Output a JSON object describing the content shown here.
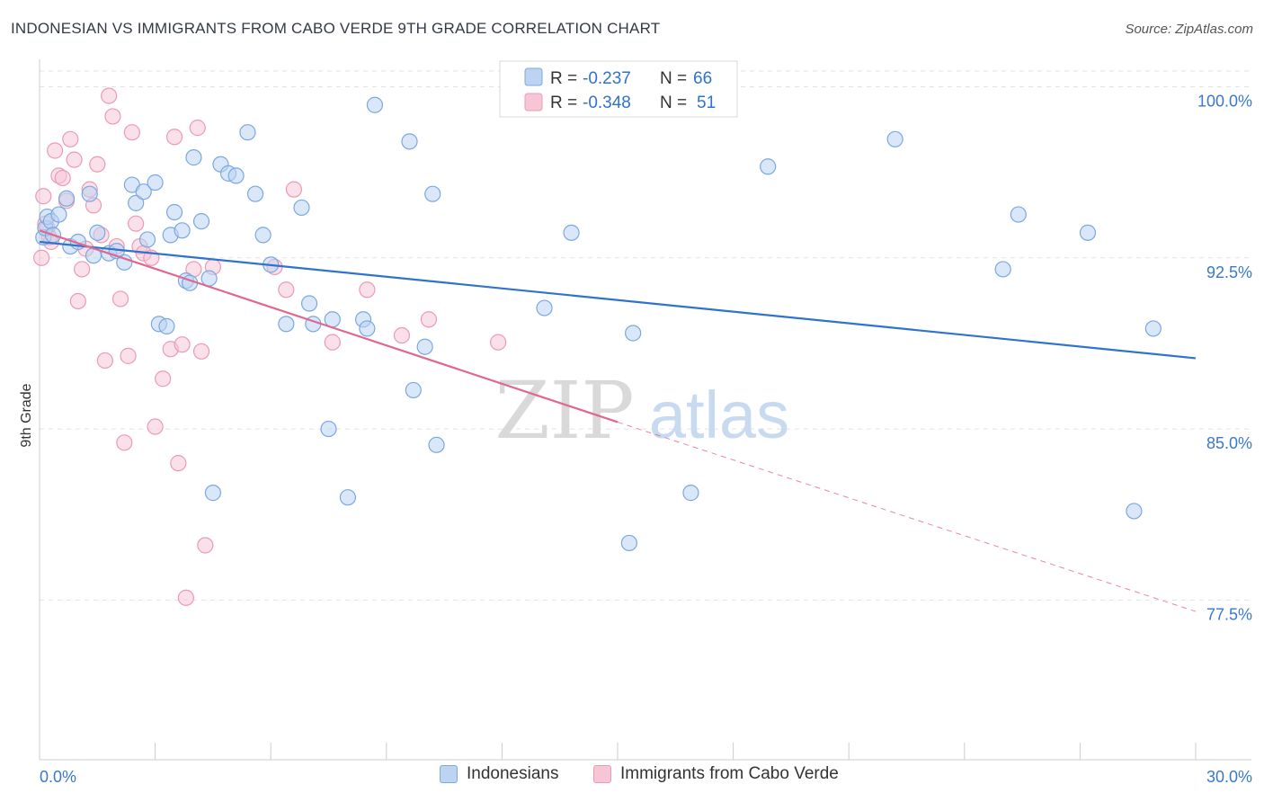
{
  "title": "INDONESIAN VS IMMIGRANTS FROM CABO VERDE 9TH GRADE CORRELATION CHART",
  "source": "Source: ZipAtlas.com",
  "watermark": {
    "zip": "ZIP",
    "atlas": "atlas"
  },
  "chart_data": {
    "type": "scatter",
    "ylabel": "9th Grade",
    "xlabel": "",
    "xlim": [
      0,
      30
    ],
    "ylim": [
      70.5,
      101.2
    ],
    "x_tick_labels": [
      "0.0%",
      "30.0%"
    ],
    "y_ticks": [
      77.5,
      85.0,
      92.5,
      100.0
    ],
    "y_tick_labels": [
      "77.5%",
      "85.0%",
      "92.5%",
      "100.0%"
    ],
    "grid": "horizontal-dashed",
    "legend_box": [
      {
        "r_label": "R =",
        "r_value": "-0.237",
        "n_label": "N =",
        "n_value": "66"
      },
      {
        "r_label": "R =",
        "r_value": "-0.348",
        "n_label": "N =",
        "n_value": "51"
      }
    ],
    "series": [
      {
        "name": "Indonesians",
        "color": "#7aa8e0",
        "fill": "#bcd3f2",
        "line_color": "#2f73cc",
        "trend": {
          "x0": 0,
          "y0": 93.2,
          "x1": 30,
          "y1": 88.1
        },
        "points": [
          [
            0.1,
            93.4
          ],
          [
            0.15,
            93.8
          ],
          [
            0.2,
            94.3
          ],
          [
            0.3,
            94.1
          ],
          [
            0.35,
            93.5
          ],
          [
            0.5,
            94.4
          ],
          [
            0.7,
            95.1
          ],
          [
            0.8,
            93.0
          ],
          [
            1.0,
            93.2
          ],
          [
            1.3,
            95.3
          ],
          [
            1.4,
            92.6
          ],
          [
            1.5,
            93.6
          ],
          [
            1.8,
            92.7
          ],
          [
            2.0,
            92.8
          ],
          [
            2.2,
            92.3
          ],
          [
            2.4,
            95.7
          ],
          [
            2.5,
            94.9
          ],
          [
            2.7,
            95.4
          ],
          [
            2.8,
            93.3
          ],
          [
            3.0,
            95.8
          ],
          [
            3.1,
            89.6
          ],
          [
            3.3,
            89.5
          ],
          [
            3.4,
            93.5
          ],
          [
            3.5,
            94.5
          ],
          [
            3.7,
            93.7
          ],
          [
            3.8,
            91.5
          ],
          [
            3.9,
            91.4
          ],
          [
            4.0,
            96.9
          ],
          [
            4.2,
            94.1
          ],
          [
            4.4,
            91.6
          ],
          [
            4.5,
            82.2
          ],
          [
            4.7,
            96.6
          ],
          [
            4.9,
            96.2
          ],
          [
            5.1,
            96.1
          ],
          [
            5.4,
            98.0
          ],
          [
            5.6,
            95.3
          ],
          [
            5.8,
            93.5
          ],
          [
            6.0,
            92.2
          ],
          [
            6.4,
            89.6
          ],
          [
            6.8,
            94.7
          ],
          [
            7.0,
            90.5
          ],
          [
            7.1,
            89.6
          ],
          [
            7.5,
            85.0
          ],
          [
            7.6,
            89.8
          ],
          [
            8.0,
            82.0
          ],
          [
            8.4,
            89.8
          ],
          [
            8.5,
            89.4
          ],
          [
            8.7,
            99.2
          ],
          [
            9.6,
            97.6
          ],
          [
            9.7,
            86.7
          ],
          [
            10.0,
            88.6
          ],
          [
            10.2,
            95.3
          ],
          [
            10.3,
            84.3
          ],
          [
            13.1,
            90.3
          ],
          [
            13.2,
            99.2
          ],
          [
            13.8,
            93.6
          ],
          [
            15.3,
            80.0
          ],
          [
            15.4,
            89.2
          ],
          [
            16.9,
            82.2
          ],
          [
            18.9,
            96.5
          ],
          [
            22.2,
            97.7
          ],
          [
            25.0,
            92.0
          ],
          [
            25.4,
            94.4
          ],
          [
            27.2,
            93.6
          ],
          [
            28.4,
            81.4
          ],
          [
            28.9,
            89.4
          ]
        ]
      },
      {
        "name": "Immigrants from Cabo Verde",
        "color": "#ec9ab4",
        "fill": "#f6c6d5",
        "line_color": "#e0688e",
        "trend": {
          "x0": 0,
          "y0": 93.7,
          "x1": 15,
          "y1": 85.3
        },
        "trend_dashed_end": {
          "x": 30,
          "y": 77.0
        },
        "points": [
          [
            0.05,
            92.5
          ],
          [
            0.1,
            95.2
          ],
          [
            0.15,
            94.0
          ],
          [
            0.2,
            93.8
          ],
          [
            0.25,
            93.4
          ],
          [
            0.3,
            93.2
          ],
          [
            0.4,
            97.2
          ],
          [
            0.5,
            96.1
          ],
          [
            0.6,
            96.0
          ],
          [
            0.7,
            95.0
          ],
          [
            0.8,
            97.7
          ],
          [
            0.9,
            96.8
          ],
          [
            1.0,
            90.6
          ],
          [
            1.1,
            92.0
          ],
          [
            1.2,
            92.9
          ],
          [
            1.3,
            95.5
          ],
          [
            1.4,
            94.8
          ],
          [
            1.5,
            96.6
          ],
          [
            1.6,
            93.5
          ],
          [
            1.7,
            88.0
          ],
          [
            1.8,
            99.6
          ],
          [
            1.9,
            98.7
          ],
          [
            2.0,
            93.0
          ],
          [
            2.1,
            90.7
          ],
          [
            2.2,
            84.4
          ],
          [
            2.3,
            88.2
          ],
          [
            2.4,
            98.0
          ],
          [
            2.5,
            94.0
          ],
          [
            2.6,
            93.0
          ],
          [
            2.7,
            92.7
          ],
          [
            2.9,
            92.5
          ],
          [
            3.0,
            85.1
          ],
          [
            3.2,
            87.2
          ],
          [
            3.4,
            88.5
          ],
          [
            3.5,
            97.8
          ],
          [
            3.6,
            83.5
          ],
          [
            3.7,
            88.7
          ],
          [
            3.8,
            77.6
          ],
          [
            4.0,
            92.0
          ],
          [
            4.1,
            98.2
          ],
          [
            4.2,
            88.4
          ],
          [
            4.3,
            79.9
          ],
          [
            4.5,
            92.1
          ],
          [
            6.1,
            92.1
          ],
          [
            6.4,
            91.1
          ],
          [
            6.6,
            95.5
          ],
          [
            7.6,
            88.8
          ],
          [
            8.5,
            91.1
          ],
          [
            9.4,
            89.1
          ],
          [
            10.1,
            89.8
          ],
          [
            11.9,
            88.8
          ]
        ]
      }
    ]
  }
}
